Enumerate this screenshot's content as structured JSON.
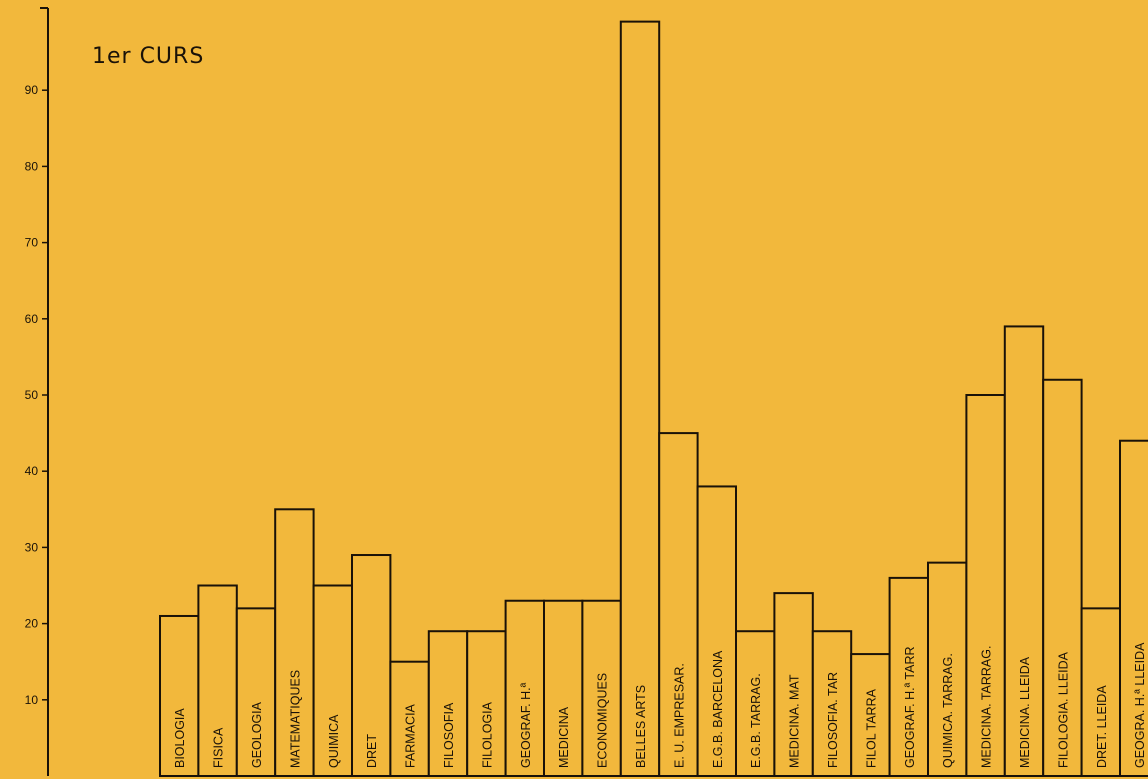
{
  "chart_data": {
    "type": "bar",
    "title": "1er CURS",
    "xlabel": "",
    "ylabel": "",
    "ylim": [
      0,
      100
    ],
    "y_ticks": [
      10,
      20,
      30,
      40,
      50,
      60,
      70,
      80,
      90
    ],
    "grid": false,
    "categories": [
      "BIOLOGIA",
      "FISICA",
      "GEOLOGIA",
      "MATEMATIQUES",
      "QUIMICA",
      "DRET",
      "FARMACIA",
      "FILOSOFIA",
      "FILOLOGIA",
      "GEOGRAF. H.ª",
      "MEDICINA",
      "ECONOMIQUES",
      "BELLES ARTS",
      "E. U. EMPRESAR.",
      "E.G.B. BARCELONA",
      "E.G.B. TARRAG.",
      "MEDICINA. MAT",
      "FILOSOFIA. TAR",
      "FILOL TARRA",
      "GEOGRAF. H.ª TARR",
      "QUIMICA. TARRAG.",
      "MEDICINA. TARRAG.",
      "MEDICINA. LLEIDA",
      "FILOLOGIA. LLEIDA",
      "DRET. LLEIDA",
      "GEOGRA. H.ª LLEIDA"
    ],
    "values": [
      21,
      25,
      22,
      35,
      25,
      29,
      15,
      19,
      19,
      23,
      23,
      23,
      99,
      45,
      38,
      19,
      24,
      19,
      16,
      26,
      28,
      50,
      59,
      52,
      22,
      44
    ]
  },
  "colors": {
    "background": "#f2b83c",
    "bar_fill": "#f2b83c",
    "ink": "#1a1208"
  }
}
